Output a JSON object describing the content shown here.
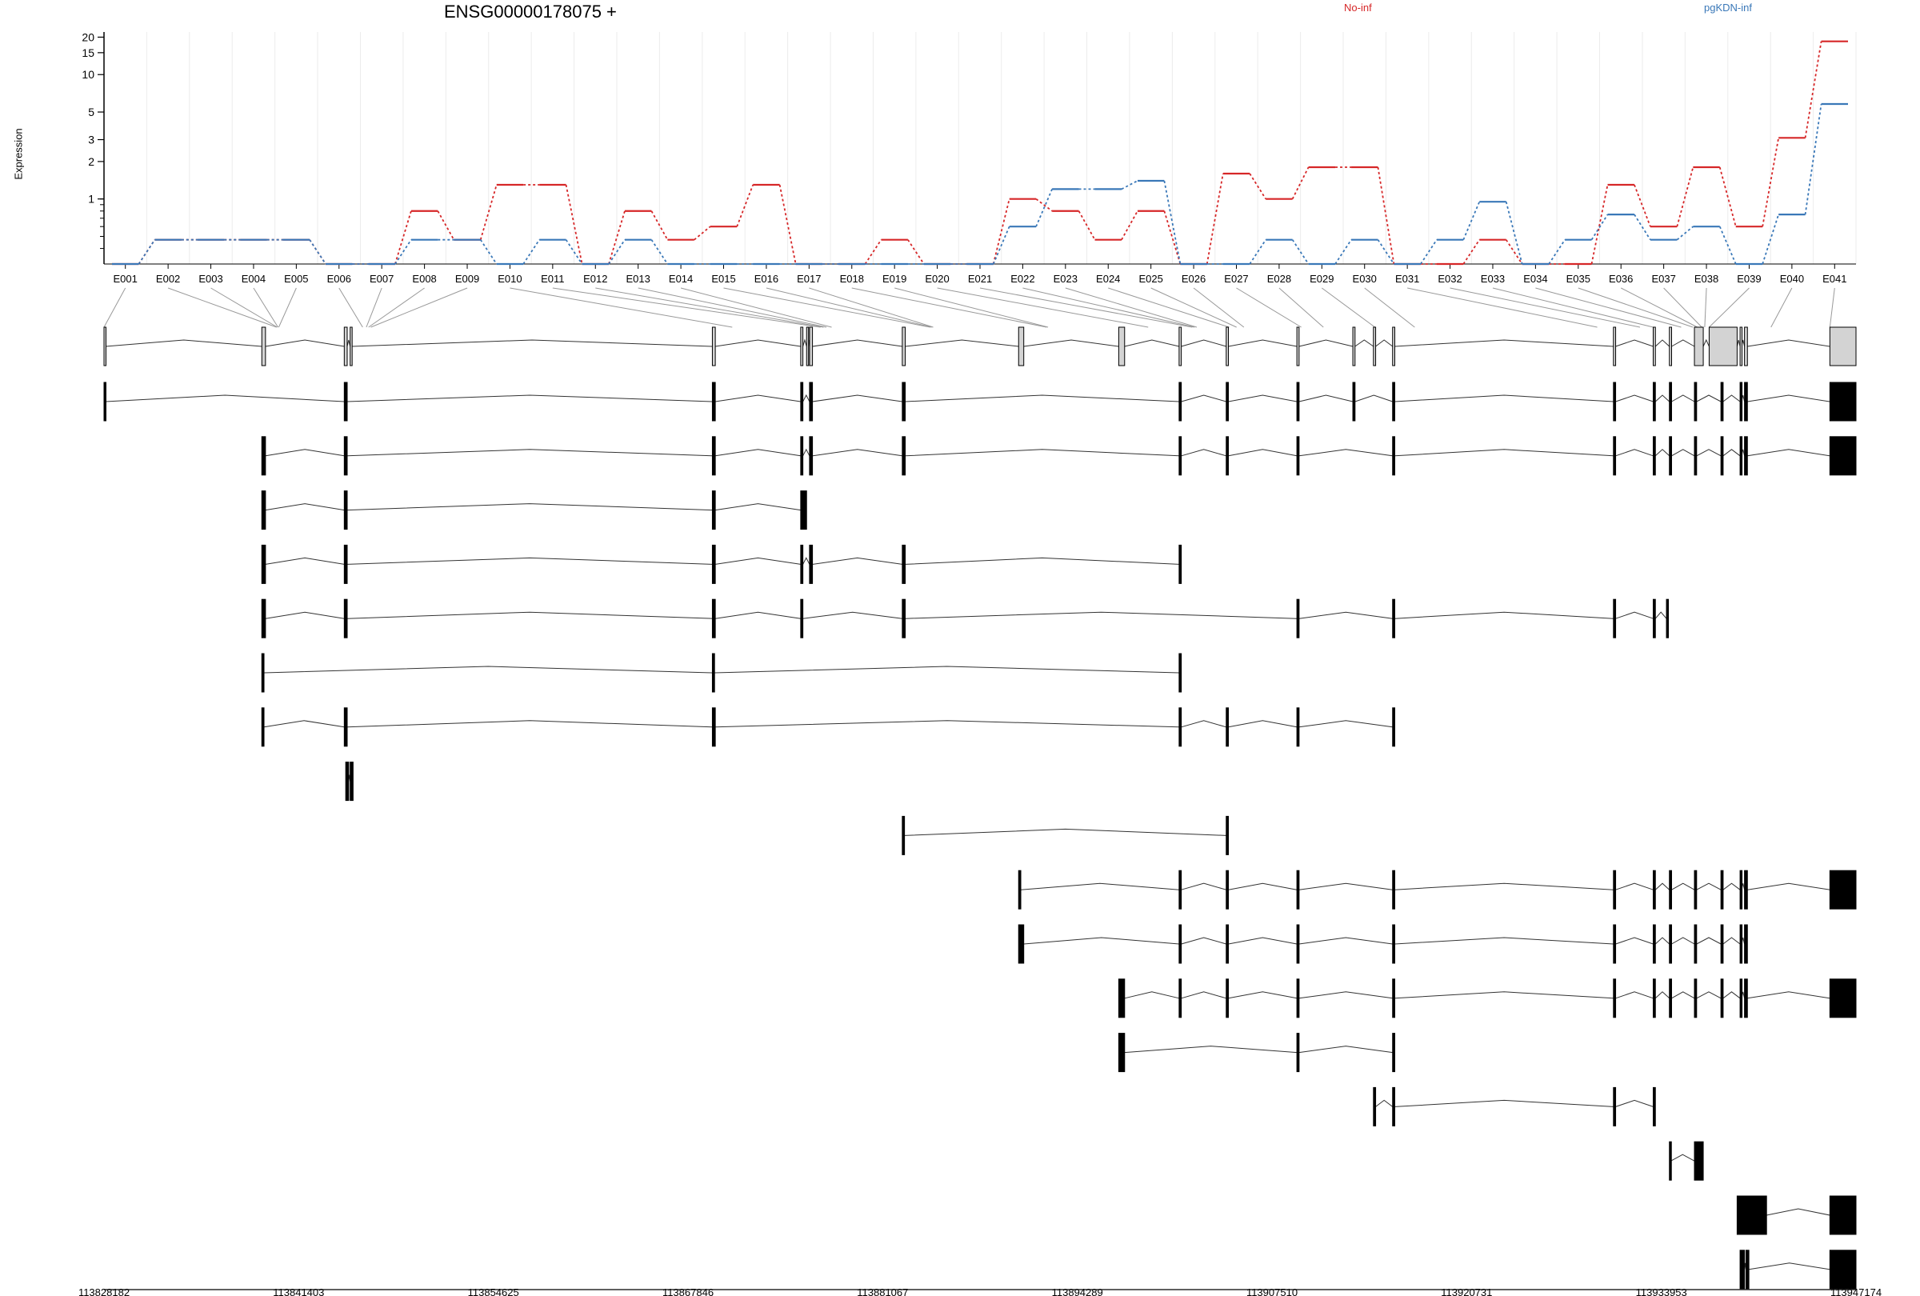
{
  "title": "ENSG00000178075 +",
  "ylabel": "Expression",
  "legend": [
    {
      "name": "No-inf",
      "color": "#d62728"
    },
    {
      "name": "pgKDN-inf",
      "color": "#3a78b8"
    }
  ],
  "chart_data": {
    "type": "line",
    "title": "ENSG00000178075 +",
    "ylabel": "Expression",
    "yscale": "log",
    "ylim": [
      0.3,
      22
    ],
    "yticks": [
      1,
      2,
      3,
      5,
      10,
      15,
      20
    ],
    "grid": true,
    "legend_position": "top-right",
    "categories": [
      "E001",
      "E002",
      "E003",
      "E004",
      "E005",
      "E006",
      "E007",
      "E008",
      "E009",
      "E010",
      "E011",
      "E012",
      "E013",
      "E014",
      "E015",
      "E016",
      "E017",
      "E018",
      "E019",
      "E020",
      "E021",
      "E022",
      "E023",
      "E024",
      "E025",
      "E026",
      "E027",
      "E028",
      "E029",
      "E030",
      "E031",
      "E032",
      "E033",
      "E034",
      "E035",
      "E036",
      "E037",
      "E038",
      "E039",
      "E040",
      "E041"
    ],
    "series": [
      {
        "name": "No-inf",
        "color": "#d62728",
        "values": [
          0.3,
          0.47,
          0.47,
          0.47,
          0.47,
          0.3,
          0.3,
          0.8,
          0.47,
          1.3,
          1.3,
          0.3,
          0.8,
          0.47,
          0.6,
          1.3,
          0.3,
          0.3,
          0.47,
          0.3,
          0.3,
          1.0,
          0.8,
          0.47,
          0.8,
          0.3,
          1.6,
          1.0,
          1.8,
          1.8,
          0.3,
          0.3,
          0.47,
          0.3,
          0.3,
          1.3,
          0.6,
          1.8,
          0.6,
          3.1,
          18.5
        ]
      },
      {
        "name": "pgKDN-inf",
        "color": "#3a78b8",
        "values": [
          0.3,
          0.47,
          0.47,
          0.47,
          0.47,
          0.3,
          0.3,
          0.47,
          0.47,
          0.3,
          0.47,
          0.3,
          0.47,
          0.3,
          0.3,
          0.3,
          0.3,
          0.3,
          0.3,
          0.3,
          0.3,
          0.6,
          1.2,
          1.2,
          1.4,
          0.3,
          0.3,
          0.47,
          0.3,
          0.47,
          0.3,
          0.47,
          0.95,
          0.3,
          0.47,
          0.75,
          0.47,
          0.6,
          0.3,
          0.75,
          5.8
        ]
      }
    ],
    "exon_mapping": [
      {
        "exon": "E001",
        "position": 113828182
      },
      {
        "exon": "E002",
        "position": 113839900
      },
      {
        "exon": "E003",
        "position": 113839950
      },
      {
        "exon": "E004",
        "position": 113840000
      },
      {
        "exon": "E005",
        "position": 113840050
      },
      {
        "exon": "E006",
        "position": 113845750
      },
      {
        "exon": "E007",
        "position": 113846000
      },
      {
        "exon": "E008",
        "position": 113846150
      },
      {
        "exon": "E009",
        "position": 113846300
      },
      {
        "exon": "E010",
        "position": 113870850
      },
      {
        "exon": "E011",
        "position": 113876850
      },
      {
        "exon": "E012",
        "position": 113877050
      },
      {
        "exon": "E013",
        "position": 113877250
      },
      {
        "exon": "E014",
        "position": 113877600
      },
      {
        "exon": "E015",
        "position": 113884300
      },
      {
        "exon": "E016",
        "position": 113884400
      },
      {
        "exon": "E017",
        "position": 113884500
      },
      {
        "exon": "E018",
        "position": 113892200
      },
      {
        "exon": "E019",
        "position": 113892300
      },
      {
        "exon": "E020",
        "position": 113899100
      },
      {
        "exon": "E021",
        "position": 113902100
      },
      {
        "exon": "E022",
        "position": 113902250
      },
      {
        "exon": "E023",
        "position": 113902400
      },
      {
        "exon": "E024",
        "position": 113904600
      },
      {
        "exon": "E025",
        "position": 113905100
      },
      {
        "exon": "E026",
        "position": 113905600
      },
      {
        "exon": "E027",
        "position": 113909500
      },
      {
        "exon": "E028",
        "position": 113911000
      },
      {
        "exon": "E029",
        "position": 113914500
      },
      {
        "exon": "E030",
        "position": 113917200
      },
      {
        "exon": "E031",
        "position": 113929600
      },
      {
        "exon": "E032",
        "position": 113932500
      },
      {
        "exon": "E033",
        "position": 113933400
      },
      {
        "exon": "E034",
        "position": 113935300
      },
      {
        "exon": "E035",
        "position": 113936100
      },
      {
        "exon": "E036",
        "position": 113936400
      },
      {
        "exon": "E037",
        "position": 113936700
      },
      {
        "exon": "E038",
        "position": 113936900
      },
      {
        "exon": "E039",
        "position": 113937200
      },
      {
        "exon": "E040",
        "position": 113941400
      },
      {
        "exon": "E041",
        "position": 113945400
      }
    ],
    "gene_model": {
      "exons": [
        [
          113828182,
          113828300
        ],
        [
          113838900,
          113839150
        ],
        [
          113844500,
          113844700
        ],
        [
          113844900,
          113845000
        ],
        [
          113869500,
          113869700
        ],
        [
          113875500,
          113875650
        ],
        [
          113875900,
          113876000
        ],
        [
          113876100,
          113876300
        ],
        [
          113882400,
          113882600
        ],
        [
          113890300,
          113890650
        ],
        [
          113897100,
          113897500
        ],
        [
          113901200,
          113901350
        ],
        [
          113904400,
          113904550
        ],
        [
          113909200,
          113909350
        ],
        [
          113913000,
          113913150
        ],
        [
          113914400,
          113914550
        ],
        [
          113915700,
          113915850
        ],
        [
          113930700,
          113930850
        ],
        [
          113933400,
          113933550
        ],
        [
          113934500,
          113934650
        ],
        [
          113936200,
          113936800
        ],
        [
          113937200,
          113939100
        ],
        [
          113939300,
          113939400
        ],
        [
          113939600,
          113939800
        ],
        [
          113945400,
          113947174
        ]
      ]
    },
    "transcripts": [
      {
        "exons": [
          [
            113828182,
            113828300
          ],
          [
            113844500,
            113844700
          ],
          [
            113869500,
            113869700
          ],
          [
            113875500,
            113875650
          ],
          [
            113876100,
            113876300
          ],
          [
            113882400,
            113882600
          ],
          [
            113901200,
            113901350
          ],
          [
            113904400,
            113904550
          ],
          [
            113909200,
            113909350
          ],
          [
            113913000,
            113913150
          ],
          [
            113915700,
            113915850
          ],
          [
            113930700,
            113930850
          ],
          [
            113933400,
            113933550
          ],
          [
            113934500,
            113934650
          ],
          [
            113936200,
            113936350
          ],
          [
            113938000,
            113938150
          ],
          [
            113939300,
            113939400
          ],
          [
            113939600,
            113939800
          ],
          [
            113945400,
            113947174
          ]
        ]
      },
      {
        "exons": [
          [
            113838900,
            113839150
          ],
          [
            113844500,
            113844700
          ],
          [
            113869500,
            113869700
          ],
          [
            113875500,
            113875650
          ],
          [
            113876100,
            113876300
          ],
          [
            113882400,
            113882600
          ],
          [
            113901200,
            113901350
          ],
          [
            113904400,
            113904550
          ],
          [
            113909200,
            113909350
          ],
          [
            113915700,
            113915850
          ],
          [
            113930700,
            113930850
          ],
          [
            113933400,
            113933550
          ],
          [
            113934500,
            113934650
          ],
          [
            113936200,
            113936350
          ],
          [
            113938000,
            113938150
          ],
          [
            113939300,
            113939400
          ],
          [
            113939600,
            113939800
          ],
          [
            113945400,
            113947174
          ]
        ]
      },
      {
        "exons": [
          [
            113838900,
            113839150
          ],
          [
            113844500,
            113844700
          ],
          [
            113869500,
            113869700
          ],
          [
            113875500,
            113875900
          ]
        ]
      },
      {
        "exons": [
          [
            113838900,
            113839150
          ],
          [
            113844500,
            113844700
          ],
          [
            113869500,
            113869700
          ],
          [
            113875500,
            113875650
          ],
          [
            113876100,
            113876300
          ],
          [
            113882400,
            113882600
          ],
          [
            113901200,
            113901350
          ]
        ]
      },
      {
        "exons": [
          [
            113838900,
            113839150
          ],
          [
            113844500,
            113844700
          ],
          [
            113869500,
            113869700
          ],
          [
            113875500,
            113875650
          ],
          [
            113882400,
            113882600
          ],
          [
            113909200,
            113909350
          ],
          [
            113915700,
            113915850
          ],
          [
            113930700,
            113930850
          ],
          [
            113933400,
            113933550
          ],
          [
            113934300,
            113934400
          ]
        ]
      },
      {
        "exons": [
          [
            113838900,
            113839050
          ],
          [
            113869500,
            113869650
          ],
          [
            113901200,
            113901350
          ]
        ]
      },
      {
        "exons": [
          [
            113838900,
            113839050
          ],
          [
            113844500,
            113844700
          ],
          [
            113869500,
            113869700
          ],
          [
            113901200,
            113901350
          ],
          [
            113904400,
            113904550
          ],
          [
            113909200,
            113909350
          ],
          [
            113915700,
            113915850
          ]
        ]
      },
      {
        "exons": [
          [
            113844600,
            113844800
          ],
          [
            113844900,
            113845100
          ]
        ]
      },
      {
        "exons": [
          [
            113882400,
            113882550
          ],
          [
            113904400,
            113904550
          ]
        ]
      },
      {
        "exons": [
          [
            113890300,
            113890450
          ],
          [
            113901200,
            113901350
          ],
          [
            113904400,
            113904550
          ],
          [
            113909200,
            113909350
          ],
          [
            113915700,
            113915850
          ],
          [
            113930700,
            113930850
          ],
          [
            113933400,
            113933550
          ],
          [
            113934500,
            113934650
          ],
          [
            113936200,
            113936350
          ],
          [
            113938000,
            113938150
          ],
          [
            113939300,
            113939400
          ],
          [
            113939600,
            113939800
          ],
          [
            113945400,
            113947174
          ]
        ]
      },
      {
        "exons": [
          [
            113890300,
            113890650
          ],
          [
            113901200,
            113901350
          ],
          [
            113904400,
            113904550
          ],
          [
            113909200,
            113909350
          ],
          [
            113915700,
            113915850
          ],
          [
            113930700,
            113930850
          ],
          [
            113933400,
            113933550
          ],
          [
            113934500,
            113934650
          ],
          [
            113936200,
            113936350
          ],
          [
            113938000,
            113938150
          ],
          [
            113939300,
            113939400
          ],
          [
            113939600,
            113939800
          ]
        ]
      },
      {
        "exons": [
          [
            113897100,
            113897500
          ],
          [
            113901200,
            113901350
          ],
          [
            113904400,
            113904550
          ],
          [
            113909200,
            113909350
          ],
          [
            113915700,
            113915850
          ],
          [
            113930700,
            113930850
          ],
          [
            113933400,
            113933550
          ],
          [
            113934500,
            113934650
          ],
          [
            113936200,
            113936350
          ],
          [
            113938000,
            113938150
          ],
          [
            113939300,
            113939400
          ],
          [
            113939600,
            113939800
          ],
          [
            113945400,
            113947174
          ]
        ]
      },
      {
        "exons": [
          [
            113897100,
            113897500
          ],
          [
            113909200,
            113909350
          ],
          [
            113915700,
            113915850
          ]
        ]
      },
      {
        "exons": [
          [
            113914400,
            113914550
          ],
          [
            113915700,
            113915850
          ],
          [
            113930700,
            113930850
          ],
          [
            113933400,
            113933550
          ]
        ]
      },
      {
        "exons": [
          [
            113934500,
            113934600
          ],
          [
            113936200,
            113936800
          ]
        ]
      },
      {
        "exons": [
          [
            113939100,
            113941100
          ],
          [
            113945400,
            113947174
          ]
        ]
      },
      {
        "exons": [
          [
            113939300,
            113939600
          ],
          [
            113939700,
            113939900
          ],
          [
            113945400,
            113947174
          ]
        ]
      }
    ],
    "genomic_axis_ticks": [
      "113828182",
      "113841403",
      "113854625",
      "113867846",
      "113881067",
      "113894289",
      "113907510",
      "113920731",
      "113933953",
      "113947174"
    ]
  }
}
